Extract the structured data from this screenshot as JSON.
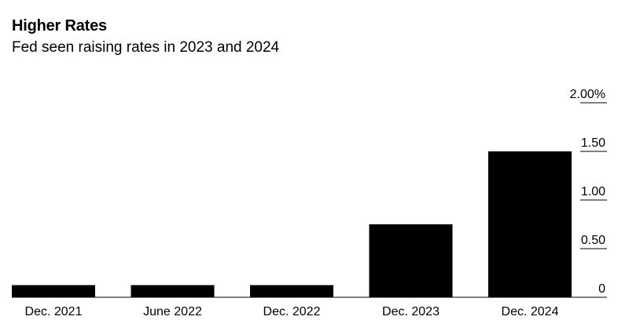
{
  "header": {
    "title": "Higher Rates",
    "subtitle": "Fed seen raising rates in 2023 and 2024"
  },
  "chart_data": {
    "type": "bar",
    "title": "Higher Rates",
    "subtitle": "Fed seen raising rates in 2023 and 2024",
    "categories": [
      "Dec. 2021",
      "June 2022",
      "Dec. 2022",
      "Dec. 2023",
      "Dec. 2024"
    ],
    "values": [
      0.125,
      0.125,
      0.125,
      0.75,
      1.5
    ],
    "ylim": [
      0,
      2.0
    ],
    "yticks": [
      0,
      0.5,
      1.0,
      1.5,
      2.0
    ],
    "ytick_labels": [
      "0",
      "0.50",
      "1.00",
      "1.50",
      "2.00%"
    ],
    "y_axis_side": "right",
    "grid": false,
    "legend": "none",
    "bar_color": "#000000"
  }
}
